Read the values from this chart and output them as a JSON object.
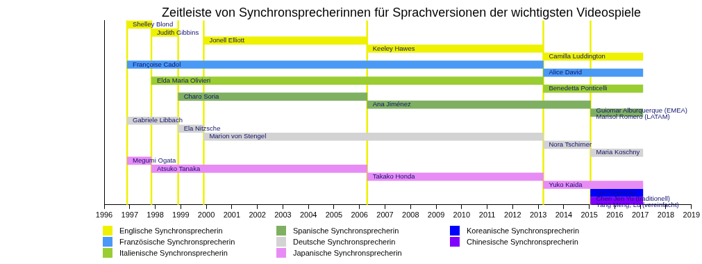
{
  "chart_data": {
    "type": "bar",
    "orientation": "horizontal",
    "title": "Zeitleiste von Synchronsprecherinnen für Sprachversionen der wichtigsten Videospiele",
    "categories": [
      "Shelley Blond",
      "Judith Gibbins",
      "Jonell Elliott",
      "Keeley Hawes",
      "Camilla Luddington",
      "Françoise Cadol",
      "Alice David",
      "Elda Maria Olivieri",
      "Benedetta Ponticelli",
      "Charo Soria",
      "Ana Jiménez",
      "Guiomar Alburquerque (EMEA)\nMarisol Romero (LATAM)",
      "Gabriele Libbach",
      "Ela Nitzsche",
      "Marion von Stengel",
      "Nora Tschirner",
      "Maria Koschny",
      "Megumi Ogata",
      "Atsuko Tanaka",
      "Takako Honda",
      "Yuko Kaida",
      "Lee Soyeong",
      "Chen Jen Yu (traditionell)\nYang Meng, Lu (vereinfacht)"
    ],
    "series": [
      {
        "name": "Englische Synchronsprecherin",
        "color": "#eef200",
        "base": [
          1996.9,
          1997.85,
          1999.9,
          2006.3,
          2013.2,
          null,
          null,
          null,
          null,
          null,
          null,
          null,
          null,
          null,
          null,
          null,
          null,
          null,
          null,
          null,
          null,
          null,
          null
        ],
        "values": [
          0.95,
          1.05,
          6.4,
          6.9,
          3.9,
          null,
          null,
          null,
          null,
          null,
          null,
          null,
          null,
          null,
          null,
          null,
          null,
          null,
          null,
          null,
          null,
          null,
          null
        ]
      },
      {
        "name": "Französische Synchronsprecherin",
        "color": "#4a9af5",
        "base": [
          null,
          null,
          null,
          null,
          null,
          1996.9,
          2013.2,
          null,
          null,
          null,
          null,
          null,
          null,
          null,
          null,
          null,
          null,
          null,
          null,
          null,
          null,
          null,
          null
        ],
        "values": [
          null,
          null,
          null,
          null,
          null,
          16.3,
          3.9,
          null,
          null,
          null,
          null,
          null,
          null,
          null,
          null,
          null,
          null,
          null,
          null,
          null,
          null,
          null,
          null
        ]
      },
      {
        "name": "Italienische Synchronsprecherin",
        "color": "#9acd32",
        "base": [
          null,
          null,
          null,
          null,
          null,
          null,
          null,
          1997.85,
          2013.2,
          null,
          null,
          null,
          null,
          null,
          null,
          null,
          null,
          null,
          null,
          null,
          null,
          null,
          null
        ],
        "values": [
          null,
          null,
          null,
          null,
          null,
          null,
          null,
          15.35,
          3.9,
          null,
          null,
          null,
          null,
          null,
          null,
          null,
          null,
          null,
          null,
          null,
          null,
          null,
          null
        ]
      },
      {
        "name": "Spanische Synchronsprecherin",
        "color": "#7fb062",
        "base": [
          null,
          null,
          null,
          null,
          null,
          null,
          null,
          null,
          null,
          1998.9,
          2006.3,
          2015.05,
          null,
          null,
          null,
          null,
          null,
          null,
          null,
          null,
          null,
          null,
          null
        ],
        "values": [
          null,
          null,
          null,
          null,
          null,
          null,
          null,
          null,
          null,
          7.4,
          8.75,
          2.05,
          null,
          null,
          null,
          null,
          null,
          null,
          null,
          null,
          null,
          null,
          null
        ]
      },
      {
        "name": "Deutsche Synchronsprecherin",
        "color": "#d3d3d3",
        "base": [
          null,
          null,
          null,
          null,
          null,
          null,
          null,
          null,
          null,
          null,
          null,
          null,
          1996.9,
          1998.9,
          1999.9,
          2013.2,
          2015.05,
          null,
          null,
          null,
          null,
          null,
          null
        ],
        "values": [
          null,
          null,
          null,
          null,
          null,
          null,
          null,
          null,
          null,
          null,
          null,
          null,
          2.0,
          1.0,
          13.3,
          1.85,
          2.05,
          null,
          null,
          null,
          null,
          null,
          null
        ]
      },
      {
        "name": "Japanische Synchronsprecherin",
        "color": "#e88cf5",
        "base": [
          null,
          null,
          null,
          null,
          null,
          null,
          null,
          null,
          null,
          null,
          null,
          null,
          null,
          null,
          null,
          null,
          null,
          1996.9,
          1997.85,
          2006.3,
          2013.2,
          null,
          null
        ],
        "values": [
          null,
          null,
          null,
          null,
          null,
          null,
          null,
          null,
          null,
          null,
          null,
          null,
          null,
          null,
          null,
          null,
          null,
          0.95,
          8.45,
          6.9,
          3.9,
          null,
          null
        ]
      },
      {
        "name": "Koreanische Synchronsprecherin",
        "color": "#0000ff",
        "base": [
          null,
          null,
          null,
          null,
          null,
          null,
          null,
          null,
          null,
          null,
          null,
          null,
          null,
          null,
          null,
          null,
          null,
          null,
          null,
          null,
          null,
          2015.05,
          null
        ],
        "values": [
          null,
          null,
          null,
          null,
          null,
          null,
          null,
          null,
          null,
          null,
          null,
          null,
          null,
          null,
          null,
          null,
          null,
          null,
          null,
          null,
          null,
          2.05,
          null
        ]
      },
      {
        "name": "Chinesische Synchronsprecherin",
        "color": "#8000ff",
        "base": [
          null,
          null,
          null,
          null,
          null,
          null,
          null,
          null,
          null,
          null,
          null,
          null,
          null,
          null,
          null,
          null,
          null,
          null,
          null,
          null,
          null,
          null,
          2015.05
        ],
        "values": [
          null,
          null,
          null,
          null,
          null,
          null,
          null,
          null,
          null,
          null,
          null,
          null,
          null,
          null,
          null,
          null,
          null,
          null,
          null,
          null,
          null,
          null,
          2.05
        ]
      }
    ],
    "xlim": [
      1996,
      2019
    ],
    "xticks": [
      1996,
      1997,
      1998,
      1999,
      2000,
      2001,
      2002,
      2003,
      2004,
      2005,
      2006,
      2007,
      2008,
      2009,
      2010,
      2011,
      2012,
      2013,
      2014,
      2015,
      2016,
      2017,
      2018,
      2019
    ],
    "ref_lines": [
      {
        "axis": "x",
        "value": 1996.9,
        "color": "#eef200"
      },
      {
        "axis": "x",
        "value": 1997.85,
        "color": "#eef200"
      },
      {
        "axis": "x",
        "value": 1998.9,
        "color": "#eef200"
      },
      {
        "axis": "x",
        "value": 1999.9,
        "color": "#eef200"
      },
      {
        "axis": "x",
        "value": 2006.3,
        "color": "#eef200"
      },
      {
        "axis": "x",
        "value": 2013.2,
        "color": "#eef200"
      },
      {
        "axis": "x",
        "value": 2015.05,
        "color": "#eef200"
      }
    ],
    "tick_labels": "x",
    "grid": false,
    "legend": "bottom"
  }
}
